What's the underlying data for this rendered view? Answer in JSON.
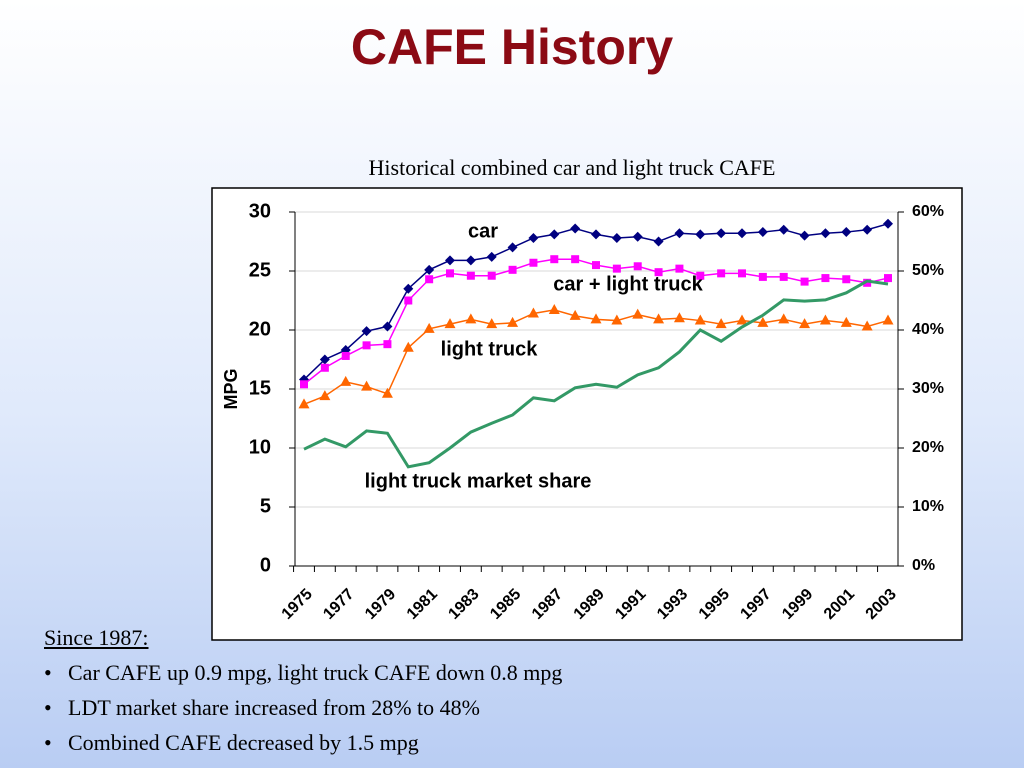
{
  "title": "CAFE History",
  "chart_data": {
    "type": "line",
    "title": "Historical combined car and light truck CAFE",
    "y_label": "MPG",
    "categories": [
      "1975",
      null,
      "1977",
      null,
      "1979",
      null,
      "1981",
      null,
      "1983",
      null,
      "1985",
      null,
      "1987",
      null,
      "1989",
      null,
      "1991",
      null,
      "1993",
      null,
      "1995",
      null,
      "1997",
      null,
      "1999",
      null,
      "2001",
      null,
      "2003"
    ],
    "series": [
      {
        "name": "car",
        "color": "#000080",
        "marker": "diamond",
        "values": [
          15.8,
          17.5,
          18.3,
          19.9,
          20.3,
          23.5,
          25.1,
          25.9,
          25.9,
          26.2,
          27.0,
          27.8,
          28.1,
          28.6,
          28.1,
          27.8,
          27.9,
          27.5,
          28.2,
          28.1,
          28.2,
          28.2,
          28.3,
          28.5,
          28.0,
          28.2,
          28.3,
          28.5,
          29.0
        ]
      },
      {
        "name": "car + light truck",
        "color": "#ff00ff",
        "marker": "square",
        "values": [
          15.4,
          16.8,
          17.8,
          18.7,
          18.8,
          22.5,
          24.3,
          24.8,
          24.6,
          24.6,
          25.1,
          25.7,
          26.0,
          26.0,
          25.5,
          25.2,
          25.4,
          24.9,
          25.2,
          24.6,
          24.8,
          24.8,
          24.5,
          24.5,
          24.1,
          24.4,
          24.3,
          24.0,
          24.4
        ]
      },
      {
        "name": "light truck",
        "color": "#ff6600",
        "marker": "triangle",
        "values": [
          13.7,
          14.4,
          15.6,
          15.2,
          14.6,
          18.5,
          20.1,
          20.5,
          20.9,
          20.5,
          20.6,
          21.4,
          21.7,
          21.2,
          20.9,
          20.8,
          21.3,
          20.9,
          21.0,
          20.8,
          20.5,
          20.8,
          20.6,
          20.9,
          20.5,
          20.8,
          20.6,
          20.3,
          20.8
        ]
      },
      {
        "name": "light truck market share",
        "color": "#339966",
        "axis": "y2",
        "values": [
          19.8,
          21.5,
          20.2,
          22.9,
          22.5,
          16.8,
          17.5,
          20.0,
          22.7,
          24.2,
          25.6,
          28.5,
          28.0,
          30.2,
          30.8,
          30.3,
          32.4,
          33.6,
          36.3,
          40.0,
          38.1,
          40.5,
          42.5,
          45.1,
          44.9,
          45.1,
          46.3,
          48.3,
          47.8
        ]
      }
    ],
    "ylim": [
      0,
      30
    ],
    "yticks": [
      0,
      5,
      10,
      15,
      20,
      25,
      30
    ],
    "y2lim": [
      0,
      60
    ],
    "y2ticks": [
      {
        "value": 0,
        "label": "0%"
      },
      {
        "value": 10,
        "label": "10%"
      },
      {
        "value": 20,
        "label": "20%"
      },
      {
        "value": 30,
        "label": "30%"
      },
      {
        "value": 40,
        "label": "40%"
      },
      {
        "value": 50,
        "label": "50%"
      },
      {
        "value": 60,
        "label": "60%"
      }
    ],
    "grid": true
  },
  "notes": {
    "heading": "Since 1987:",
    "bullets": [
      "Car CAFE up 0.9 mpg, light truck CAFE down 0.8 mpg",
      "LDT market share increased from 28% to 48%",
      "Combined CAFE decreased by 1.5 mpg"
    ]
  }
}
